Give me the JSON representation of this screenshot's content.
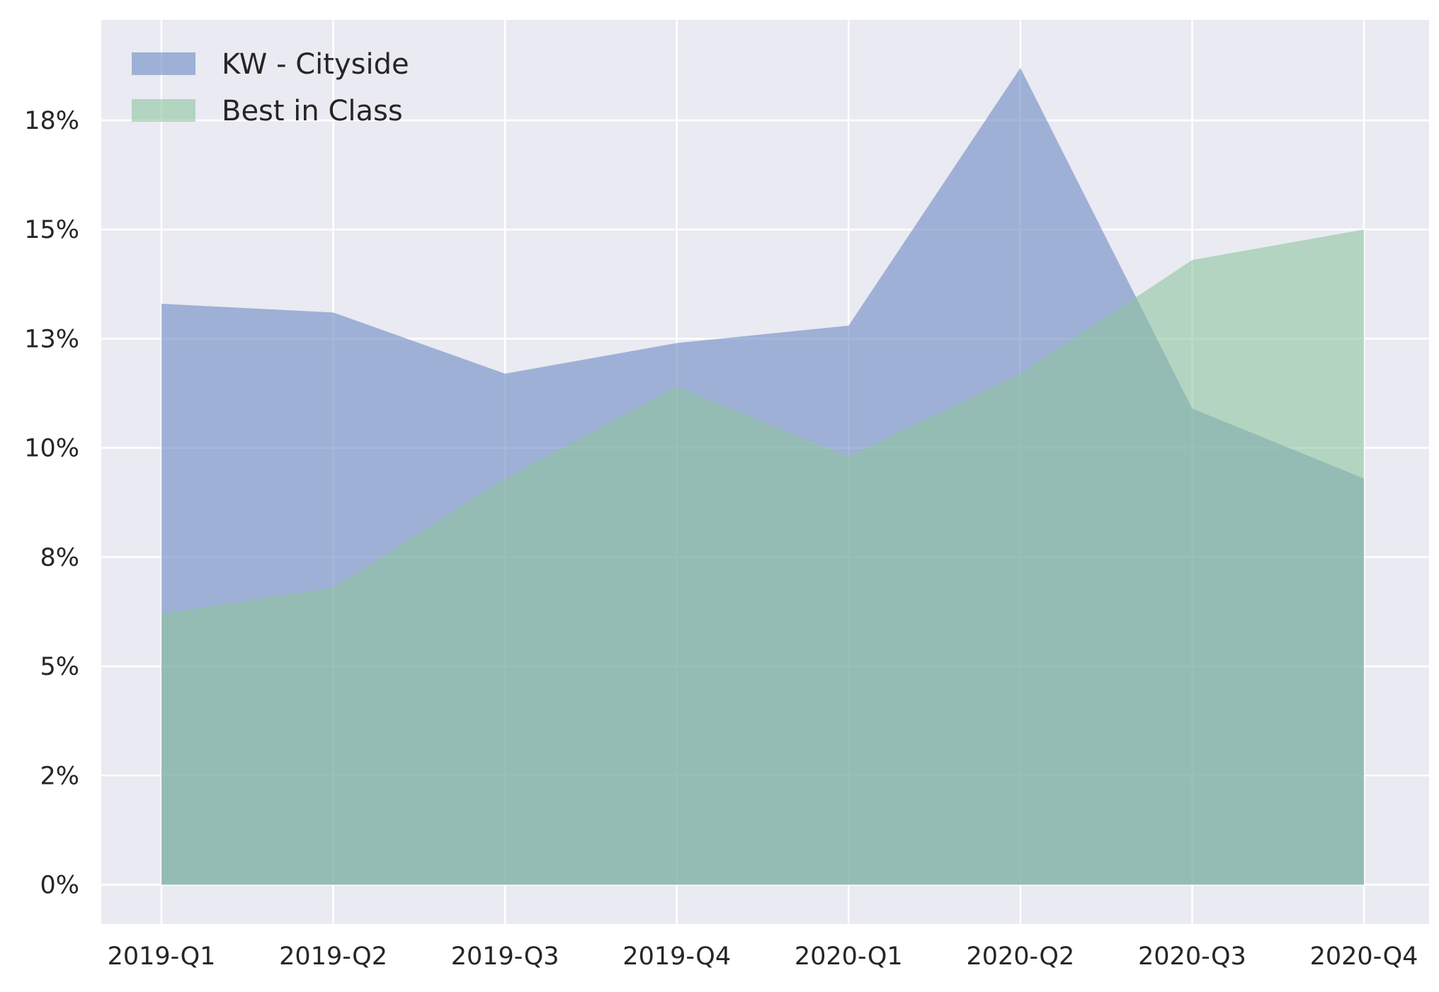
{
  "colors": {
    "plot_background": "#eaeaf2",
    "grid": "#ffffff",
    "text": "#262626"
  },
  "chart_data": {
    "type": "area",
    "categories": [
      "2019-Q1",
      "2019-Q2",
      "2019-Q3",
      "2019-Q4",
      "2020-Q1",
      "2020-Q2",
      "2020-Q3",
      "2020-Q4"
    ],
    "y_unit": "percent",
    "ylim": [
      -0.9,
      19.8
    ],
    "yticks": [
      0,
      2.5,
      5,
      7.5,
      10,
      12.5,
      15,
      17.5
    ],
    "ytick_labels": [
      "0%",
      "2%",
      "5%",
      "8%",
      "10%",
      "13%",
      "15%",
      "18%"
    ],
    "grid": true,
    "legend_position": "top-left",
    "series": [
      {
        "name": "KW - Cityside",
        "color": "#6a88c1",
        "opacity": 0.6,
        "values": [
          13.3,
          13.1,
          11.7,
          12.4,
          12.8,
          18.7,
          10.9,
          9.3
        ]
      },
      {
        "name": "Best in Class",
        "color": "#8ec49f",
        "opacity": 0.6,
        "values": [
          6.2,
          6.8,
          9.3,
          11.4,
          9.8,
          11.7,
          14.3,
          15.0
        ]
      }
    ]
  }
}
